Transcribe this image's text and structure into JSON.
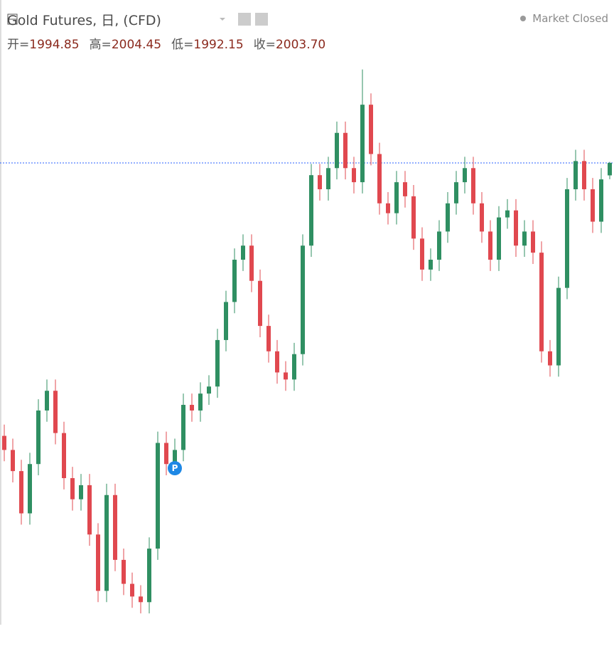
{
  "header": {
    "symbol": "Gold Futures, 日, (CFD)",
    "status": "Market Closed",
    "ohlc": [
      {
        "label": "开=",
        "value": "1994.85"
      },
      {
        "label": "高=",
        "value": "2004.45"
      },
      {
        "label": "低=",
        "value": "1992.15"
      },
      {
        "label": "收=",
        "value": "2003.70"
      }
    ]
  },
  "chart_data": {
    "type": "candlestick",
    "marker_label": "P",
    "up_color": "#2f8f62",
    "down_color": "#e0484f",
    "last_line_color": "#2962ff",
    "ylim": [
      1676,
      2089
    ],
    "open": [
      1810,
      1800,
      1785,
      1755,
      1790,
      1828,
      1842,
      1812,
      1780,
      1765,
      1775,
      1740,
      1700,
      1768,
      1722,
      1705,
      1696,
      1692,
      1730,
      1805,
      1790,
      1800,
      1832,
      1828,
      1840,
      1845,
      1878,
      1905,
      1935,
      1945,
      1920,
      1888,
      1870,
      1855,
      1850,
      1868,
      1945,
      1995,
      1985,
      2000,
      2025,
      2000,
      1990,
      2045,
      2010,
      1975,
      1968,
      1990,
      1980,
      1950,
      1928,
      1935,
      1955,
      1975,
      1990,
      2000,
      1975,
      1955,
      1935,
      1965,
      1970,
      1945,
      1955,
      1940,
      1870,
      1860,
      1915,
      1985,
      2005,
      1985,
      1962,
      1994.85
    ],
    "high": [
      1818,
      1808,
      1793,
      1798,
      1836,
      1850,
      1850,
      1820,
      1788,
      1783,
      1783,
      1748,
      1776,
      1776,
      1730,
      1713,
      1704,
      1738,
      1813,
      1813,
      1808,
      1840,
      1840,
      1848,
      1853,
      1886,
      1913,
      1943,
      1953,
      1953,
      1928,
      1896,
      1878,
      1863,
      1876,
      1953,
      2003,
      2003,
      2008,
      2033,
      2033,
      2008,
      2070,
      2053,
      2018,
      1983,
      1998,
      1998,
      1988,
      1958,
      1943,
      1963,
      1983,
      1998,
      2008,
      2008,
      1983,
      1963,
      1973,
      1978,
      1978,
      1963,
      1963,
      1948,
      1878,
      1923,
      1993,
      2013,
      2013,
      1993,
      2000,
      2004.45
    ],
    "low": [
      1792,
      1777,
      1747,
      1747,
      1782,
      1820,
      1804,
      1772,
      1757,
      1757,
      1732,
      1692,
      1692,
      1714,
      1697,
      1688,
      1684,
      1684,
      1722,
      1782,
      1782,
      1792,
      1820,
      1820,
      1832,
      1837,
      1870,
      1897,
      1927,
      1912,
      1880,
      1862,
      1847,
      1842,
      1842,
      1860,
      1937,
      1977,
      1977,
      1992,
      1992,
      1982,
      1982,
      2002,
      1967,
      1960,
      1960,
      1972,
      1942,
      1920,
      1920,
      1927,
      1947,
      1967,
      1982,
      1967,
      1947,
      1927,
      1927,
      1957,
      1937,
      1937,
      1932,
      1862,
      1852,
      1852,
      1907,
      1977,
      1977,
      1954,
      1954,
      1992.15
    ],
    "close": [
      1800,
      1785,
      1755,
      1790,
      1828,
      1842,
      1812,
      1780,
      1765,
      1775,
      1740,
      1700,
      1768,
      1722,
      1705,
      1696,
      1692,
      1730,
      1805,
      1790,
      1800,
      1832,
      1828,
      1840,
      1845,
      1878,
      1905,
      1935,
      1945,
      1920,
      1888,
      1870,
      1855,
      1850,
      1868,
      1945,
      1995,
      1985,
      2000,
      2025,
      2000,
      1990,
      2045,
      2010,
      1975,
      1968,
      1990,
      1980,
      1950,
      1928,
      1935,
      1955,
      1975,
      1990,
      2000,
      1975,
      1955,
      1935,
      1965,
      1970,
      1945,
      1955,
      1940,
      1870,
      1860,
      1915,
      1985,
      2005,
      1985,
      1962,
      1992,
      2003.7
    ]
  }
}
